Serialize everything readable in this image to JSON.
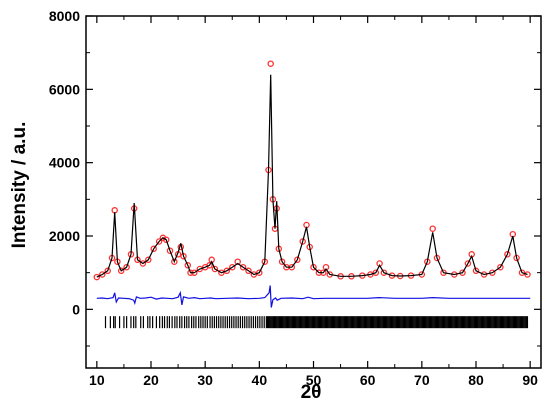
{
  "chart_data": {
    "type": "line",
    "title": "",
    "xlabel": "2θ",
    "ylabel": "Intensity / a.u.",
    "xlim": [
      8,
      92
    ],
    "ylim": [
      -1600,
      8000
    ],
    "xticks": [
      10,
      20,
      30,
      40,
      50,
      60,
      70,
      80,
      90
    ],
    "yticks": [
      0,
      2000,
      4000,
      6000,
      8000
    ],
    "grid": false,
    "legend": "none",
    "colors": {
      "observed": "#ff3030",
      "calculated": "#000000",
      "difference": "#1010e0",
      "reflections": "#000000",
      "axis": "#000000"
    },
    "series": [
      {
        "role": "observed",
        "style": "markers",
        "x": [
          10,
          11,
          12,
          12.8,
          13.3,
          13.8,
          14.5,
          15.5,
          16.3,
          16.9,
          17.5,
          18.5,
          19.5,
          20.5,
          21.5,
          22.2,
          22.8,
          23.5,
          24.3,
          25,
          25.5,
          26,
          26.8,
          27.3,
          28,
          29,
          30,
          30.8,
          31.2,
          31.8,
          33,
          34,
          35,
          36,
          37,
          38,
          39,
          40,
          41,
          41.7,
          42.1,
          42.5,
          42.9,
          43.2,
          43.6,
          44.2,
          45,
          46,
          47,
          48,
          48.7,
          49.3,
          50,
          51,
          51.8,
          52.3,
          53,
          55,
          57,
          59,
          60.5,
          61.5,
          62.2,
          63,
          64.5,
          66,
          68,
          70,
          71,
          72,
          72.8,
          74,
          76,
          77.5,
          78.5,
          79.2,
          80,
          81.5,
          83,
          84.5,
          85.8,
          86.8,
          87.5,
          88.5,
          89.5
        ],
        "y": [
          880,
          950,
          1050,
          1400,
          2700,
          1300,
          1050,
          1150,
          1500,
          2750,
          1350,
          1250,
          1350,
          1650,
          1850,
          1950,
          1900,
          1600,
          1300,
          1500,
          1700,
          1450,
          1200,
          1000,
          1000,
          1100,
          1150,
          1200,
          1350,
          1100,
          1000,
          1050,
          1150,
          1300,
          1150,
          1050,
          950,
          1000,
          1300,
          3800,
          6700,
          3000,
          2200,
          2750,
          1650,
          1300,
          1150,
          1150,
          1350,
          1850,
          2300,
          1700,
          1150,
          1000,
          1000,
          1150,
          950,
          900,
          900,
          920,
          950,
          1000,
          1250,
          1000,
          920,
          910,
          920,
          950,
          1300,
          2200,
          1400,
          1000,
          950,
          1000,
          1250,
          1500,
          1050,
          950,
          1000,
          1150,
          1500,
          2050,
          1400,
          1000,
          950
        ]
      },
      {
        "role": "calculated",
        "style": "line",
        "x": [
          10,
          11,
          12,
          12.8,
          13.3,
          13.8,
          14.5,
          15.5,
          16.3,
          16.9,
          17.5,
          18.5,
          19.5,
          20.5,
          21.5,
          22.2,
          22.8,
          23.5,
          24.3,
          25,
          25.5,
          26,
          26.8,
          27.3,
          28,
          29,
          30,
          30.8,
          31.2,
          31.8,
          33,
          34,
          35,
          36,
          37,
          38,
          39,
          40,
          41,
          41.7,
          42.1,
          42.5,
          42.9,
          43.2,
          43.6,
          44.2,
          45,
          46,
          47,
          48,
          48.7,
          49.3,
          50,
          51,
          51.8,
          52.3,
          53,
          55,
          57,
          59,
          60.5,
          61.5,
          62.2,
          63,
          64.5,
          66,
          68,
          70,
          71,
          72,
          72.8,
          74,
          76,
          77.5,
          78.5,
          79.2,
          80,
          81.5,
          83,
          84.5,
          85.8,
          86.8,
          87.5,
          88.5,
          89.5
        ],
        "y": [
          880,
          950,
          1050,
          1400,
          2650,
          1300,
          1050,
          1150,
          1500,
          2900,
          1350,
          1250,
          1350,
          1650,
          1850,
          1950,
          1900,
          1600,
          1300,
          1550,
          1800,
          1450,
          1200,
          1000,
          1000,
          1100,
          1150,
          1200,
          1300,
          1100,
          1000,
          1050,
          1150,
          1250,
          1150,
          1050,
          950,
          1000,
          1300,
          3800,
          6400,
          3000,
          2200,
          2950,
          1650,
          1300,
          1150,
          1150,
          1350,
          1850,
          2250,
          1700,
          1150,
          1000,
          1000,
          1100,
          950,
          900,
          900,
          920,
          950,
          1000,
          1200,
          1000,
          920,
          910,
          920,
          950,
          1300,
          2100,
          1400,
          1000,
          950,
          1000,
          1250,
          1450,
          1050,
          950,
          1000,
          1150,
          1500,
          2000,
          1400,
          1000,
          950
        ]
      },
      {
        "role": "difference",
        "style": "line",
        "x": [
          10,
          11,
          12,
          13,
          13.3,
          13.6,
          14,
          15,
          16,
          16.8,
          17,
          17.3,
          18,
          19,
          20,
          21,
          22,
          23,
          24,
          25,
          25.4,
          25.7,
          26,
          27,
          28,
          29,
          30,
          31,
          32,
          34,
          36,
          38,
          40,
          41,
          41.8,
          42,
          42.2,
          42.5,
          43,
          43.3,
          44,
          46,
          48,
          49,
          50,
          52,
          55,
          60,
          62,
          65,
          70,
          72,
          75,
          80,
          85,
          87,
          90
        ],
        "y": [
          300,
          310,
          290,
          320,
          450,
          200,
          310,
          300,
          290,
          250,
          170,
          340,
          300,
          310,
          330,
          280,
          310,
          300,
          290,
          330,
          450,
          120,
          340,
          300,
          320,
          290,
          300,
          310,
          290,
          300,
          310,
          290,
          300,
          320,
          450,
          650,
          50,
          260,
          310,
          250,
          300,
          310,
          290,
          330,
          290,
          300,
          300,
          300,
          320,
          300,
          300,
          320,
          300,
          300,
          300,
          300,
          300
        ]
      }
    ],
    "reflections": {
      "y": -350,
      "positions": [
        11.6,
        12.5,
        13.1,
        13.4,
        14.2,
        15.0,
        15.5,
        16.3,
        16.8,
        17.2,
        18.1,
        18.6,
        19.4,
        19.8,
        20.3,
        21.0,
        21.6,
        22.1,
        22.5,
        23.0,
        23.4,
        23.9,
        24.4,
        24.8,
        25.3,
        25.7,
        26.2,
        26.6,
        27.0,
        27.5,
        27.9,
        28.3,
        28.8,
        29.2,
        29.6,
        30.0,
        30.4,
        30.9,
        31.3,
        31.7,
        32.1,
        32.5,
        32.9,
        33.3,
        33.7,
        34.1,
        34.5,
        34.9,
        35.3,
        35.7,
        36.1,
        36.5,
        36.9,
        37.3,
        37.7,
        38.1,
        38.5,
        38.9,
        39.3,
        39.7,
        40.1,
        40.5,
        40.9,
        41.3
      ],
      "dense_from": 41.5,
      "dense_to": 89.5,
      "dense_step": 0.2
    }
  }
}
